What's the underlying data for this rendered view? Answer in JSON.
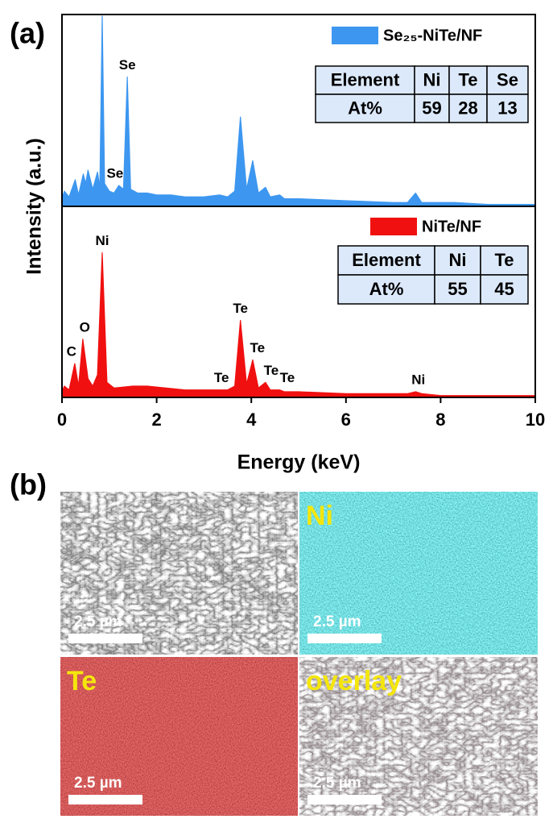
{
  "panel_labels": [
    "(a)",
    "(b)"
  ],
  "chart_data": [
    {
      "type": "line",
      "ylabel": "Intensity (a.u.)",
      "xlim": [
        0,
        10
      ],
      "ylim": [
        0,
        100
      ],
      "x": [
        0,
        0.05,
        0.15,
        0.28,
        0.35,
        0.45,
        0.5,
        0.55,
        0.65,
        0.75,
        0.8,
        0.85,
        0.9,
        1.0,
        1.1,
        1.2,
        1.3,
        1.38,
        1.45,
        1.6,
        1.8,
        2.0,
        2.3,
        2.6,
        3.0,
        3.33,
        3.5,
        3.65,
        3.77,
        3.9,
        4.03,
        4.15,
        4.3,
        4.4,
        4.6,
        4.7,
        5.0,
        6.0,
        7.0,
        7.3,
        7.47,
        7.6,
        8.0,
        8.3,
        9,
        10
      ],
      "series": [
        {
          "name": "Se₂₅-NiTe/NF",
          "color": "#3d97f0",
          "values": [
            4,
            8,
            5,
            14,
            6,
            17,
            12,
            19,
            9,
            18,
            10,
            100,
            12,
            8,
            7,
            11,
            9,
            68,
            9,
            7,
            7,
            6,
            6,
            5,
            5,
            6,
            5,
            8,
            47,
            9,
            24,
            7,
            10,
            5,
            6,
            4,
            4,
            3,
            2,
            2,
            7,
            2,
            2,
            2,
            1,
            1
          ]
        }
      ],
      "annotations": [
        {
          "text": "Se",
          "x": 1.38,
          "y": 68
        },
        {
          "text": "Se",
          "x": 1.12,
          "y": 11
        }
      ],
      "table": {
        "columns": [
          "Element",
          "Ni",
          "Te",
          "Se"
        ],
        "rows": [
          [
            "At%",
            59,
            28,
            13
          ]
        ]
      }
    },
    {
      "type": "line",
      "xlabel": "Energy (keV)",
      "xlim": [
        0,
        10
      ],
      "ylim": [
        0,
        100
      ],
      "xticks": [
        0,
        2,
        4,
        6,
        8,
        10
      ],
      "x": [
        0,
        0.05,
        0.15,
        0.27,
        0.35,
        0.44,
        0.55,
        0.65,
        0.75,
        0.85,
        0.95,
        1.1,
        1.5,
        1.8,
        2.2,
        2.6,
        3.0,
        3.33,
        3.5,
        3.65,
        3.77,
        3.9,
        4.03,
        4.15,
        4.3,
        4.4,
        4.6,
        4.7,
        5,
        6,
        7,
        7.3,
        7.47,
        7.6,
        8,
        9,
        10
      ],
      "series": [
        {
          "name": "NiTe/NF",
          "color": "#f01010",
          "values": [
            3,
            6,
            4,
            18,
            6,
            31,
            10,
            6,
            12,
            77,
            8,
            5,
            6,
            6,
            5,
            4,
            4,
            4,
            4,
            6,
            41,
            7,
            20,
            5,
            8,
            4,
            4,
            3,
            3,
            2,
            2,
            2,
            3,
            2,
            1,
            1,
            1
          ]
        }
      ],
      "annotations": [
        {
          "text": "C",
          "x": 0.2,
          "y": 18
        },
        {
          "text": "O",
          "x": 0.48,
          "y": 31
        },
        {
          "text": "Ni",
          "x": 0.85,
          "y": 77
        },
        {
          "text": "Te",
          "x": 3.77,
          "y": 41
        },
        {
          "text": "Te",
          "x": 4.13,
          "y": 20
        },
        {
          "text": "Te",
          "x": 4.42,
          "y": 8
        },
        {
          "text": "Te",
          "x": 4.76,
          "y": 4
        },
        {
          "text": "Te",
          "x": 3.37,
          "y": 4
        },
        {
          "text": "Ni",
          "x": 7.53,
          "y": 3
        }
      ],
      "table": {
        "columns": [
          "Element",
          "Ni",
          "Te"
        ],
        "rows": [
          [
            "At%",
            55,
            45
          ]
        ]
      }
    }
  ],
  "images": [
    {
      "scale_bar": "2.5 µm"
    },
    {
      "label": "Ni",
      "scale_bar": "2.5 µm"
    },
    {
      "label": "Te",
      "scale_bar": "2.5 µm"
    },
    {
      "label": "overlay",
      "scale_bar": "2.5 µm"
    }
  ]
}
